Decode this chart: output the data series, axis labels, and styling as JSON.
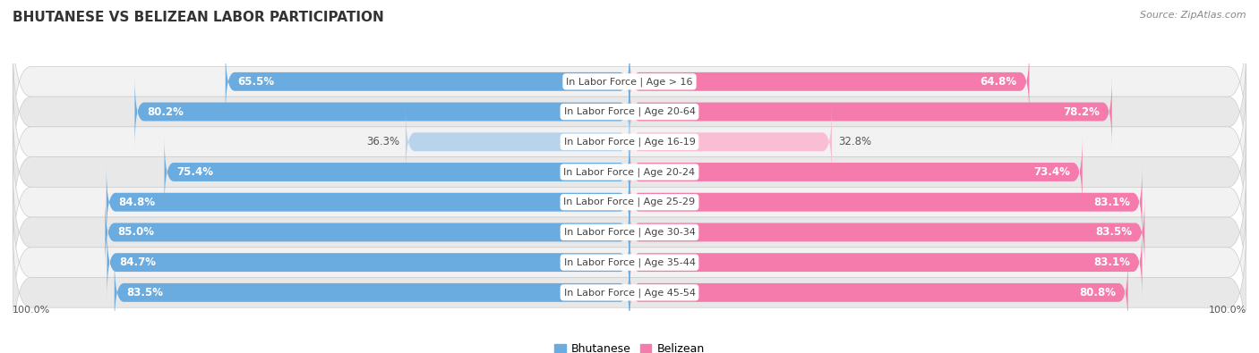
{
  "title": "BHUTANESE VS BELIZEAN LABOR PARTICIPATION",
  "source": "Source: ZipAtlas.com",
  "categories": [
    "In Labor Force | Age > 16",
    "In Labor Force | Age 20-64",
    "In Labor Force | Age 16-19",
    "In Labor Force | Age 20-24",
    "In Labor Force | Age 25-29",
    "In Labor Force | Age 30-34",
    "In Labor Force | Age 35-44",
    "In Labor Force | Age 45-54"
  ],
  "bhutanese": [
    65.5,
    80.2,
    36.3,
    75.4,
    84.8,
    85.0,
    84.7,
    83.5
  ],
  "belizean": [
    64.8,
    78.2,
    32.8,
    73.4,
    83.1,
    83.5,
    83.1,
    80.8
  ],
  "blue_color": "#6AABE0",
  "blue_light": "#B8D4ED",
  "pink_color": "#F47BAB",
  "pink_light": "#F9BDD4",
  "row_bg_odd": "#F2F2F2",
  "row_bg_even": "#E8E8E8",
  "bar_height": 0.62,
  "label_fontsize": 8.5,
  "title_fontsize": 11,
  "source_fontsize": 8,
  "legend_fontsize": 9,
  "cat_fontsize": 8.0,
  "axis_label": "100.0%",
  "light_threshold": 50,
  "max_val": 100
}
